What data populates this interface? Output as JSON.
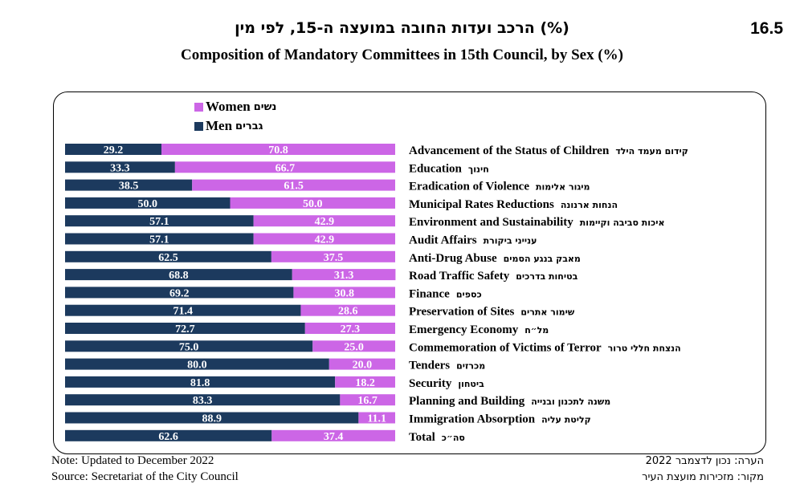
{
  "header": {
    "number": "16.5",
    "title_he": "הרכב ועדות החובה במועצה ה-15, לפי מין (%)",
    "title_en": "Composition of Mandatory Committees in 15th Council, by Sex (%)"
  },
  "legend": {
    "women_en": "Women",
    "women_he": "נשים",
    "men_en": "Men",
    "men_he": "גברים"
  },
  "colors": {
    "women": "#cc66e6",
    "men": "#1c3a5e",
    "label_text": "#ffffff"
  },
  "chart_data": {
    "type": "bar",
    "orientation": "horizontal",
    "stacked": true,
    "xlim": [
      0,
      100
    ],
    "categories": [
      {
        "en": "Advancement of the Status of Children",
        "he": "קידום מעמד הילד"
      },
      {
        "en": "Education",
        "he": "חינוך"
      },
      {
        "en": "Eradication of Violence",
        "he": "מיגור אלימות"
      },
      {
        "en": "Municipal Rates Reductions",
        "he": "הנחות ארנונה"
      },
      {
        "en": "Environment and Sustainability",
        "he": "איכות סביבה וקיימות"
      },
      {
        "en": "Audit Affairs",
        "he": "ענייני ביקורת"
      },
      {
        "en": "Anti-Drug Abuse",
        "he": "מאבק בנגע הסמים"
      },
      {
        "en": "Road Traffic Safety",
        "he": "בטיחות בדרכים"
      },
      {
        "en": "Finance",
        "he": "כספים"
      },
      {
        "en": "Preservation of Sites",
        "he": "שימור אתרים"
      },
      {
        "en": "Emergency Economy",
        "he": "מל״ח"
      },
      {
        "en": "Commemoration of Victims of Terror",
        "he": "הנצחת חללי טרור"
      },
      {
        "en": "Tenders",
        "he": "מכרזים"
      },
      {
        "en": "Security",
        "he": "ביטחון"
      },
      {
        "en": "Planning and Building",
        "he": "משנה לתכנון ובנייה"
      },
      {
        "en": "Immigration Absorption",
        "he": "קליטת עליה"
      },
      {
        "en": "Total",
        "he": "סה״כ"
      }
    ],
    "series": [
      {
        "name": "Men",
        "values": [
          "29.2",
          "33.3",
          "38.5",
          "50.0",
          "57.1",
          "57.1",
          "62.5",
          "68.8",
          "69.2",
          "71.4",
          "72.7",
          "75.0",
          "80.0",
          "81.8",
          "83.3",
          "88.9",
          "62.6"
        ]
      },
      {
        "name": "Women",
        "values": [
          "70.8",
          "66.7",
          "61.5",
          "50.0",
          "42.9",
          "42.9",
          "37.5",
          "31.3",
          "30.8",
          "28.6",
          "27.3",
          "25.0",
          "20.0",
          "18.2",
          "16.7",
          "11.1",
          "37.4"
        ]
      }
    ]
  },
  "notes": {
    "note_en": "Note: Updated to December 2022",
    "source_en": "Source: Secretariat of the City Council",
    "note_he": "הערה: נכון לדצמבר 2022",
    "source_he": "מקור: מזכירות מועצת העיר"
  }
}
